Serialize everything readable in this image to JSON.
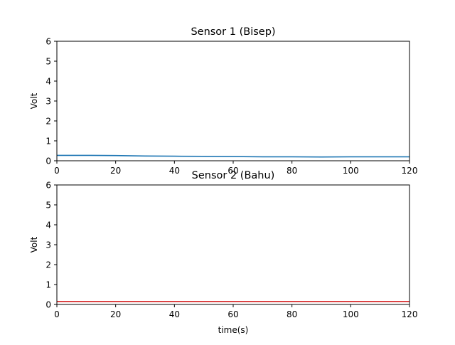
{
  "chart_data": [
    {
      "type": "line",
      "title": "Sensor 1 (Bisep)",
      "xlabel": "",
      "ylabel": "Volt",
      "xlim": [
        0,
        120
      ],
      "ylim": [
        0,
        6
      ],
      "xticks": [
        0,
        20,
        40,
        60,
        80,
        100,
        120
      ],
      "yticks": [
        0,
        1,
        2,
        3,
        4,
        5,
        6
      ],
      "grid": false,
      "series": [
        {
          "color": "#1f77b4",
          "x": [
            0,
            10,
            20,
            30,
            40,
            50,
            60,
            70,
            80,
            90,
            100,
            110,
            120
          ],
          "y": [
            0.27,
            0.27,
            0.26,
            0.24,
            0.23,
            0.22,
            0.21,
            0.2,
            0.2,
            0.19,
            0.2,
            0.2,
            0.2
          ]
        }
      ]
    },
    {
      "type": "line",
      "title": "Sensor 2 (Bahu)",
      "xlabel": "time(s)",
      "ylabel": "Volt",
      "xlim": [
        0,
        120
      ],
      "ylim": [
        0,
        6
      ],
      "xticks": [
        0,
        20,
        40,
        60,
        80,
        100,
        120
      ],
      "yticks": [
        0,
        1,
        2,
        3,
        4,
        5,
        6
      ],
      "grid": false,
      "series": [
        {
          "color": "#d62728",
          "x": [
            0,
            20,
            40,
            60,
            80,
            100,
            120
          ],
          "y": [
            0.15,
            0.15,
            0.15,
            0.15,
            0.15,
            0.15,
            0.15
          ]
        }
      ]
    }
  ]
}
